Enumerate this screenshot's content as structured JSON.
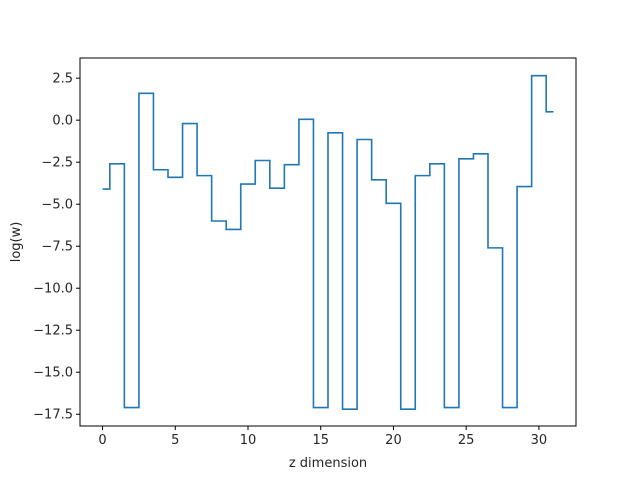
{
  "chart_data": {
    "type": "line",
    "drawstyle": "steps-mid",
    "title": "",
    "xlabel": "z dimension",
    "ylabel": "log(w)",
    "xlim": [
      -1.55,
      32.55
    ],
    "ylim": [
      -18.2,
      3.7
    ],
    "xticks": [
      0,
      5,
      10,
      15,
      20,
      25,
      30
    ],
    "xtick_labels": [
      "0",
      "5",
      "10",
      "15",
      "20",
      "25",
      "30"
    ],
    "yticks": [
      2.5,
      0.0,
      -2.5,
      -5.0,
      -7.5,
      -10.0,
      -12.5,
      -15.0,
      -17.5
    ],
    "ytick_labels": [
      "2.5",
      "0.0",
      "−2.5",
      "−5.0",
      "−7.5",
      "−10.0",
      "−12.5",
      "−15.0",
      "−17.5"
    ],
    "grid": false,
    "legend": "none",
    "series": [
      {
        "color": "#1f77b4",
        "x": [
          0,
          1,
          2,
          3,
          4,
          5,
          6,
          7,
          8,
          9,
          10,
          11,
          12,
          13,
          14,
          15,
          16,
          17,
          18,
          19,
          20,
          21,
          22,
          23,
          24,
          25,
          26,
          27,
          28,
          29,
          30,
          31
        ],
        "values": [
          -4.1,
          -2.6,
          -17.1,
          1.6,
          -2.95,
          -3.4,
          -0.2,
          -3.3,
          -6.0,
          -6.5,
          -3.8,
          -2.4,
          -4.05,
          -2.65,
          0.05,
          -17.1,
          -0.75,
          -17.2,
          -1.15,
          -3.55,
          -4.95,
          -17.2,
          -3.3,
          -2.6,
          -17.1,
          -2.3,
          -2.0,
          -7.6,
          -17.1,
          -3.95,
          2.65,
          0.5
        ]
      }
    ]
  }
}
